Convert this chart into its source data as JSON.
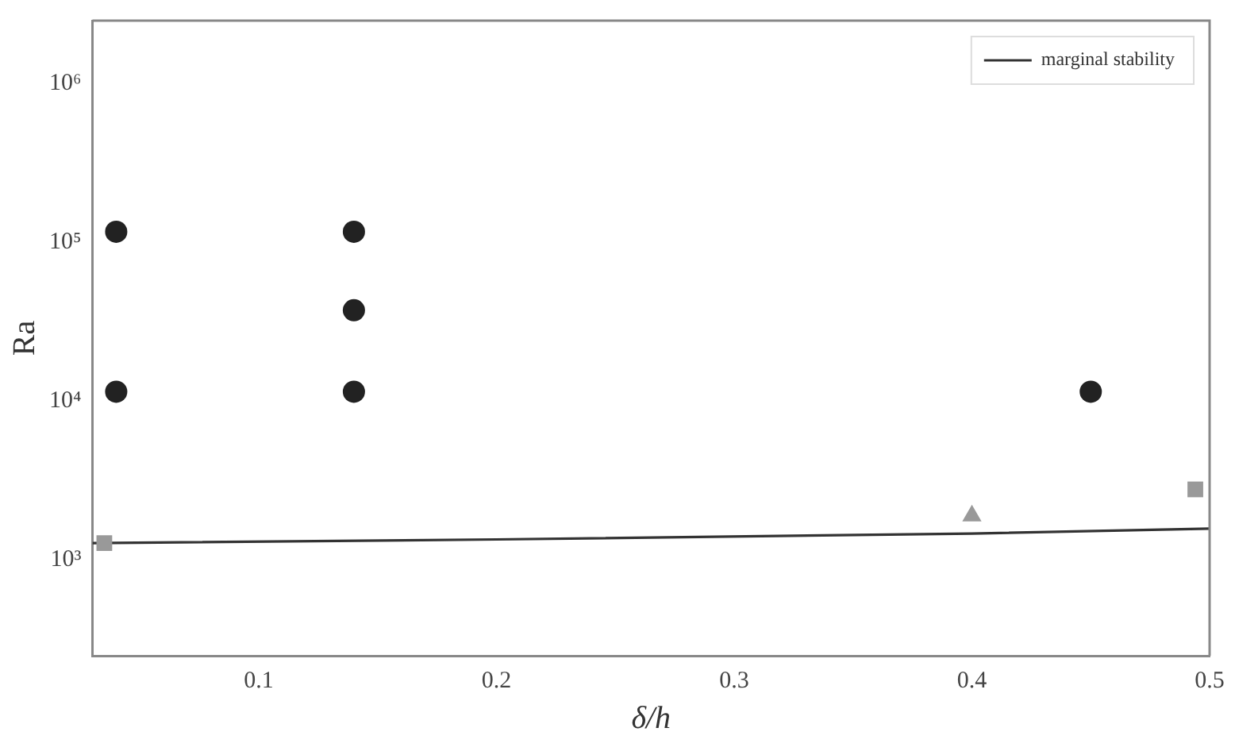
{
  "chart_data": {
    "type": "scatter",
    "xlabel": "δ/h",
    "ylabel": "Ra",
    "log": "y",
    "grid": false,
    "legend": "top right",
    "xlim": [
      0.03,
      0.5
    ],
    "xticks": [
      0.1,
      0.2,
      0.3,
      0.4,
      0.5
    ],
    "ylim": [
      250,
      2500000
    ],
    "yticks": [
      {
        "value": 1000,
        "label": "10³"
      },
      {
        "value": 10000,
        "label": "10⁴"
      },
      {
        "value": 100000,
        "label": "10⁵"
      },
      {
        "value": 1000000,
        "label": "10⁶"
      }
    ],
    "series": [
      {
        "marker": "circle",
        "color": "#222222",
        "x": [
          0.04,
          0.04,
          0.14,
          0.14,
          0.14,
          0.45
        ],
        "values": [
          117000,
          11500,
          117000,
          37500,
          11500,
          11500
        ]
      },
      {
        "marker": "square",
        "color": "#999999",
        "x": [
          0.035,
          0.494
        ],
        "values": [
          1280,
          2790
        ]
      },
      {
        "marker": "triangle",
        "color": "#999999",
        "x": [
          0.4
        ],
        "values": [
          1900
        ]
      },
      {
        "type": "line",
        "name": "marginal stability",
        "color": "#333333",
        "marker": "none",
        "line_style": "solid",
        "x": [
          0.03,
          0.2,
          0.4,
          0.5
        ],
        "values": [
          1280,
          1350,
          1470,
          1580
        ]
      }
    ]
  }
}
